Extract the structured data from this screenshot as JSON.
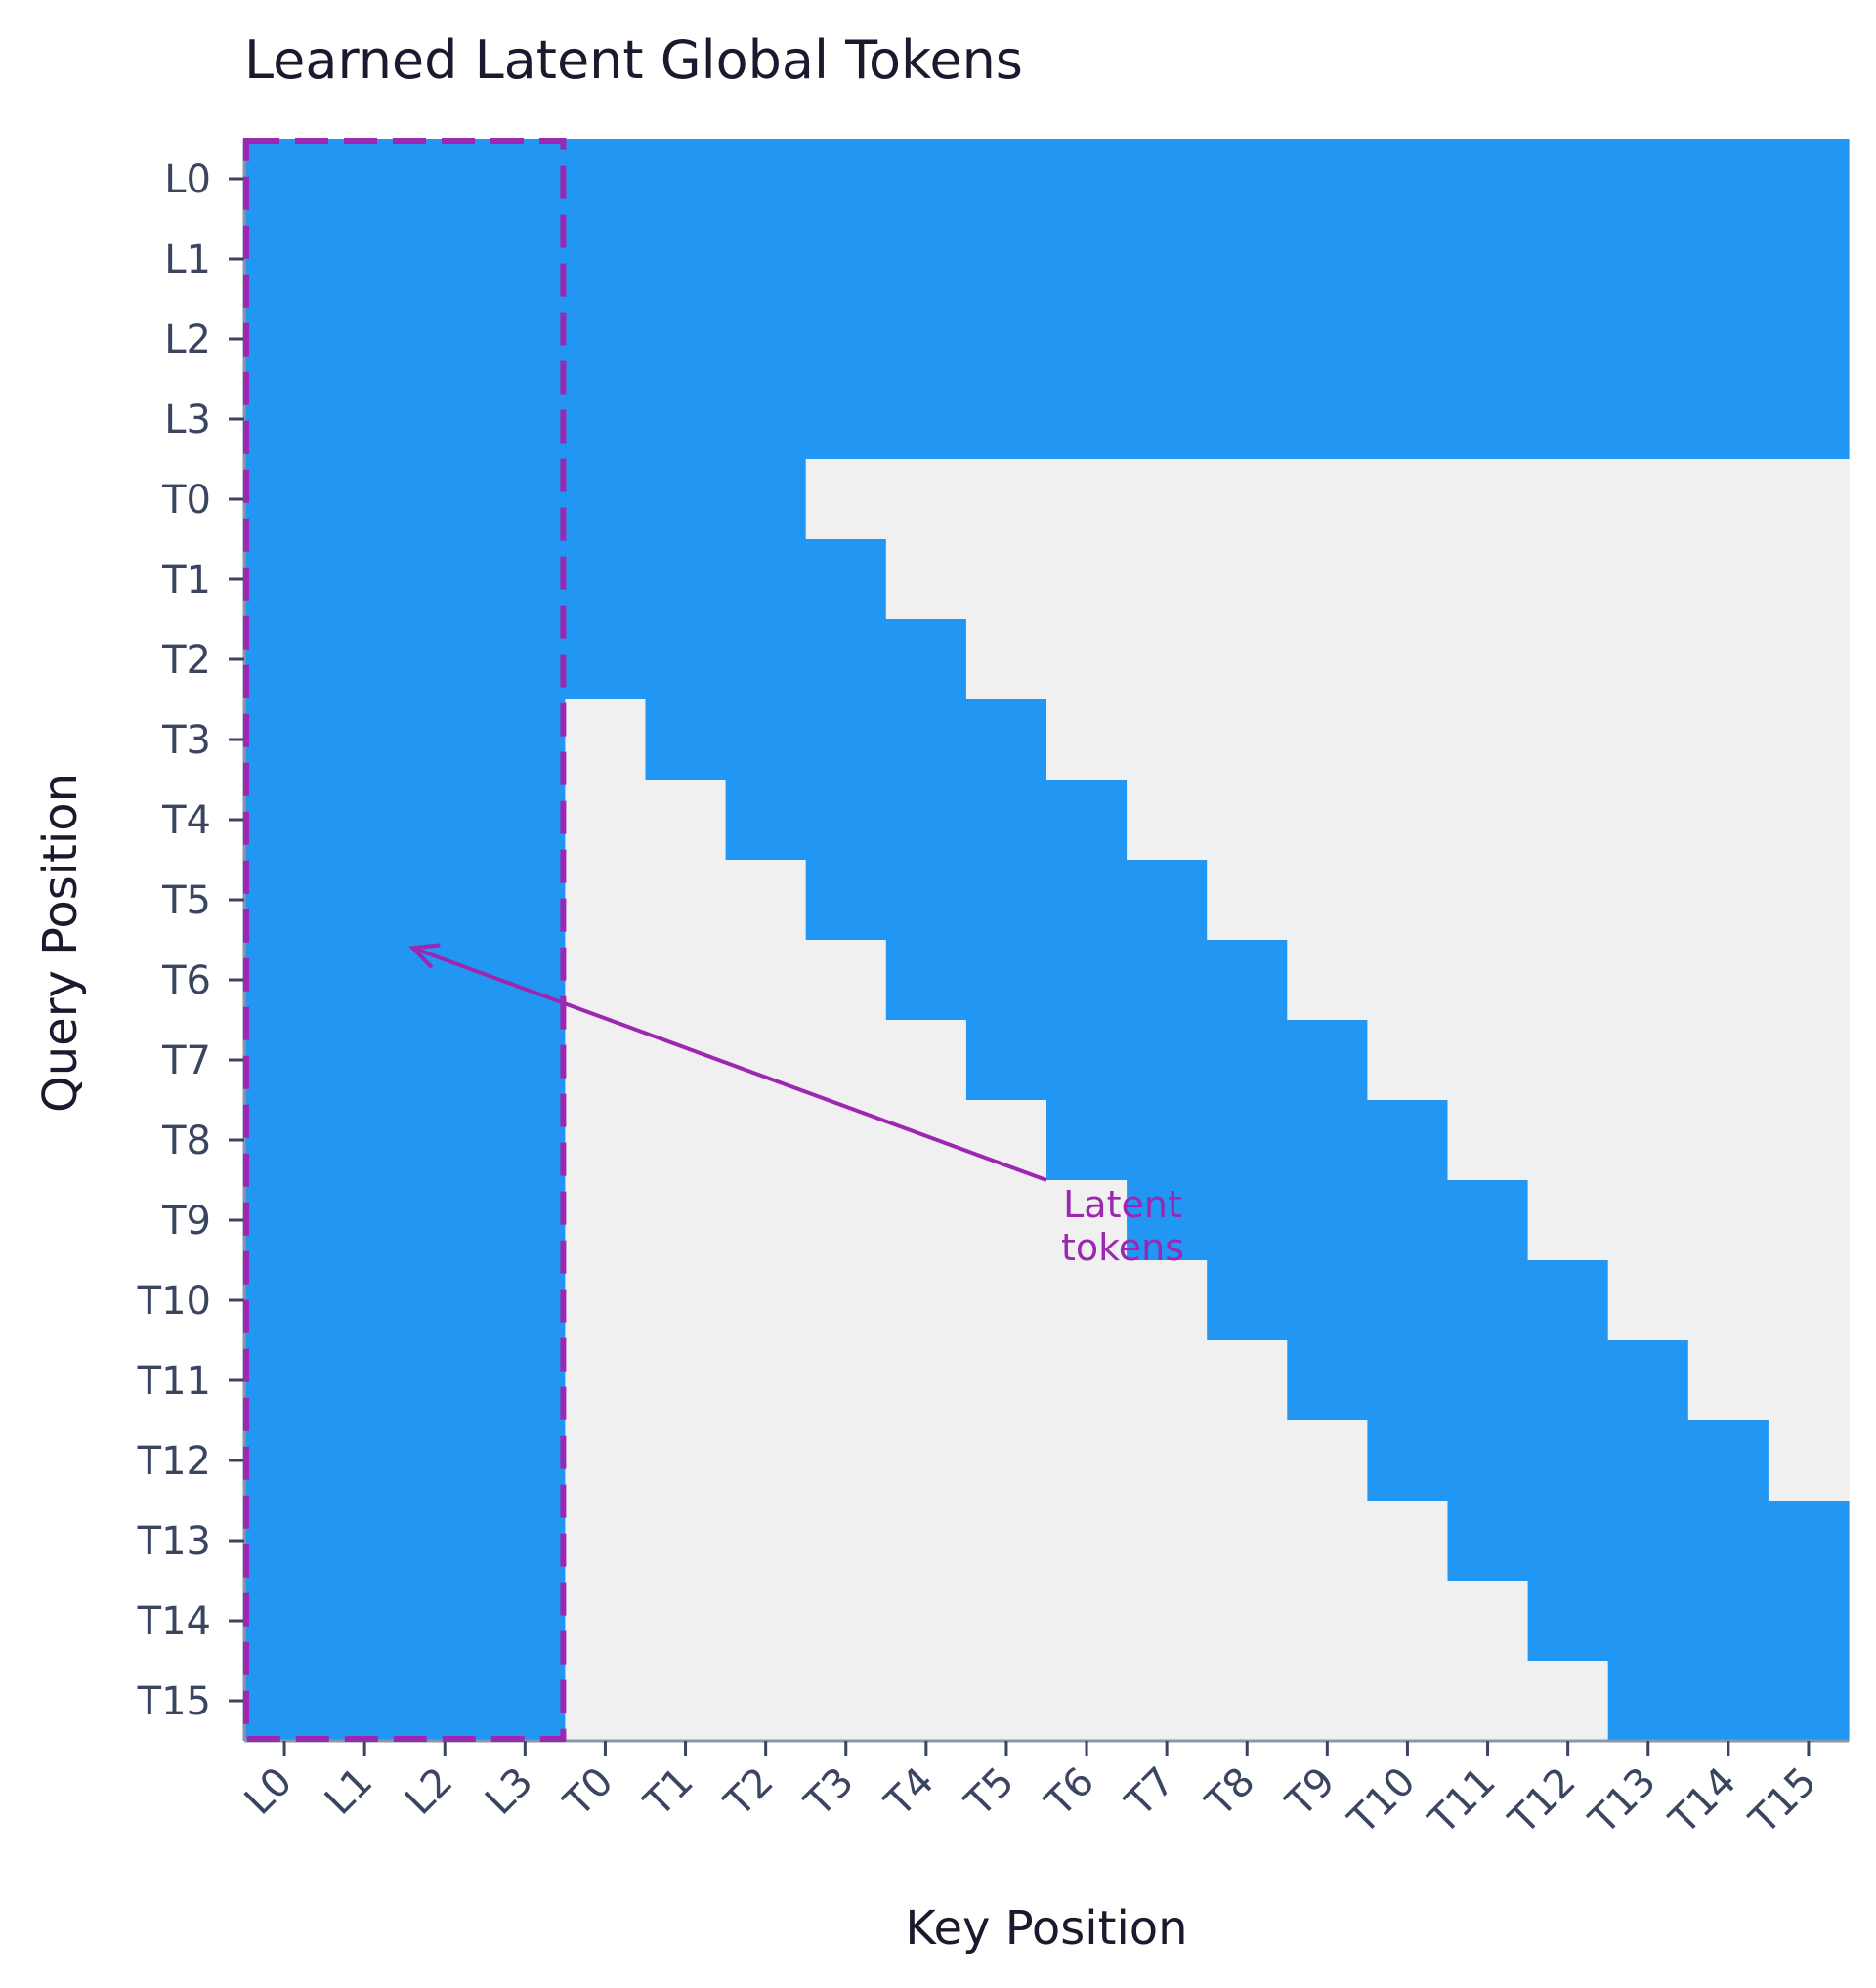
{
  "chart_data": {
    "type": "heatmap",
    "title": "Learned Latent Global Tokens",
    "xlabel": "Key Position",
    "ylabel": "Query Position",
    "x_labels": [
      "L0",
      "L1",
      "L2",
      "L3",
      "T0",
      "T1",
      "T2",
      "T3",
      "T4",
      "T5",
      "T6",
      "T7",
      "T8",
      "T9",
      "T10",
      "T11",
      "T12",
      "T13",
      "T14",
      "T15"
    ],
    "y_labels": [
      "L0",
      "L1",
      "L2",
      "L3",
      "T0",
      "T1",
      "T2",
      "T3",
      "T4",
      "T5",
      "T6",
      "T7",
      "T8",
      "T9",
      "T10",
      "T11",
      "T12",
      "T13",
      "T14",
      "T15"
    ],
    "matrix": [
      [
        1,
        1,
        1,
        1,
        1,
        1,
        1,
        1,
        1,
        1,
        1,
        1,
        1,
        1,
        1,
        1,
        1,
        1,
        1,
        1
      ],
      [
        1,
        1,
        1,
        1,
        1,
        1,
        1,
        1,
        1,
        1,
        1,
        1,
        1,
        1,
        1,
        1,
        1,
        1,
        1,
        1
      ],
      [
        1,
        1,
        1,
        1,
        1,
        1,
        1,
        1,
        1,
        1,
        1,
        1,
        1,
        1,
        1,
        1,
        1,
        1,
        1,
        1
      ],
      [
        1,
        1,
        1,
        1,
        1,
        1,
        1,
        1,
        1,
        1,
        1,
        1,
        1,
        1,
        1,
        1,
        1,
        1,
        1,
        1
      ],
      [
        1,
        1,
        1,
        1,
        1,
        1,
        1,
        0,
        0,
        0,
        0,
        0,
        0,
        0,
        0,
        0,
        0,
        0,
        0,
        0
      ],
      [
        1,
        1,
        1,
        1,
        1,
        1,
        1,
        1,
        0,
        0,
        0,
        0,
        0,
        0,
        0,
        0,
        0,
        0,
        0,
        0
      ],
      [
        1,
        1,
        1,
        1,
        1,
        1,
        1,
        1,
        1,
        0,
        0,
        0,
        0,
        0,
        0,
        0,
        0,
        0,
        0,
        0
      ],
      [
        1,
        1,
        1,
        1,
        0,
        1,
        1,
        1,
        1,
        1,
        0,
        0,
        0,
        0,
        0,
        0,
        0,
        0,
        0,
        0
      ],
      [
        1,
        1,
        1,
        1,
        0,
        0,
        1,
        1,
        1,
        1,
        1,
        0,
        0,
        0,
        0,
        0,
        0,
        0,
        0,
        0
      ],
      [
        1,
        1,
        1,
        1,
        0,
        0,
        0,
        1,
        1,
        1,
        1,
        1,
        0,
        0,
        0,
        0,
        0,
        0,
        0,
        0
      ],
      [
        1,
        1,
        1,
        1,
        0,
        0,
        0,
        0,
        1,
        1,
        1,
        1,
        1,
        0,
        0,
        0,
        0,
        0,
        0,
        0
      ],
      [
        1,
        1,
        1,
        1,
        0,
        0,
        0,
        0,
        0,
        1,
        1,
        1,
        1,
        1,
        0,
        0,
        0,
        0,
        0,
        0
      ],
      [
        1,
        1,
        1,
        1,
        0,
        0,
        0,
        0,
        0,
        0,
        1,
        1,
        1,
        1,
        1,
        0,
        0,
        0,
        0,
        0
      ],
      [
        1,
        1,
        1,
        1,
        0,
        0,
        0,
        0,
        0,
        0,
        0,
        1,
        1,
        1,
        1,
        1,
        0,
        0,
        0,
        0
      ],
      [
        1,
        1,
        1,
        1,
        0,
        0,
        0,
        0,
        0,
        0,
        0,
        0,
        1,
        1,
        1,
        1,
        1,
        0,
        0,
        0
      ],
      [
        1,
        1,
        1,
        1,
        0,
        0,
        0,
        0,
        0,
        0,
        0,
        0,
        0,
        1,
        1,
        1,
        1,
        1,
        0,
        0
      ],
      [
        1,
        1,
        1,
        1,
        0,
        0,
        0,
        0,
        0,
        0,
        0,
        0,
        0,
        0,
        1,
        1,
        1,
        1,
        1,
        0
      ],
      [
        1,
        1,
        1,
        1,
        0,
        0,
        0,
        0,
        0,
        0,
        0,
        0,
        0,
        0,
        0,
        1,
        1,
        1,
        1,
        1
      ],
      [
        1,
        1,
        1,
        1,
        0,
        0,
        0,
        0,
        0,
        0,
        0,
        0,
        0,
        0,
        0,
        0,
        1,
        1,
        1,
        1
      ],
      [
        1,
        1,
        1,
        1,
        0,
        0,
        0,
        0,
        0,
        0,
        0,
        0,
        0,
        0,
        0,
        0,
        0,
        1,
        1,
        1
      ]
    ],
    "annotation": {
      "text_lines": [
        "Latent",
        "tokens"
      ],
      "points_to_row": "T6",
      "points_to_col": 2.1
    },
    "highlight_region": {
      "cols": [
        "L0",
        "L3"
      ],
      "rows": [
        "L0",
        "T15"
      ],
      "style": "dashed"
    },
    "colors": {
      "attend": "#2196f3",
      "masked": "#f0f0f0",
      "highlight": "#9c27b0",
      "tick_label": "#3a4660",
      "title": "#1a1a2e",
      "axis": "#8c96a8"
    },
    "grid": false,
    "legend": "none"
  }
}
